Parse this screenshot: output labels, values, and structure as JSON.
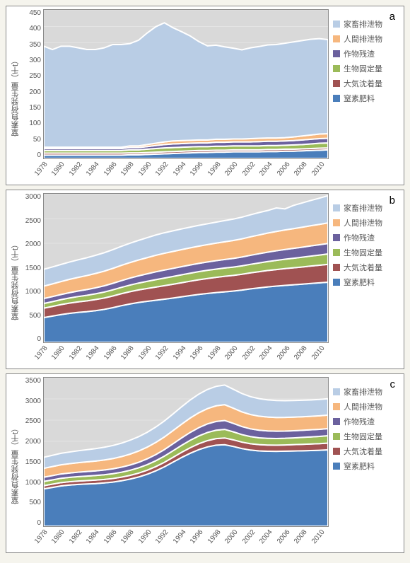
{
  "page": {
    "background_color": "#f5f4ed",
    "panel_border_color": "#888888"
  },
  "shared": {
    "yaxis_title": "窒素負荷発生量（千t）",
    "years": [
      1978,
      1979,
      1980,
      1981,
      1982,
      1983,
      1984,
      1985,
      1986,
      1987,
      1988,
      1989,
      1990,
      1991,
      1992,
      1993,
      1994,
      1995,
      1996,
      1997,
      1998,
      1999,
      2000,
      2001,
      2002,
      2003,
      2004,
      2005,
      2006,
      2007,
      2008,
      2009,
      2010,
      2011
    ],
    "x_tick_years": [
      1978,
      1980,
      1982,
      1984,
      1986,
      1988,
      1990,
      1992,
      1994,
      1996,
      1998,
      2000,
      2002,
      2004,
      2006,
      2008,
      2010
    ],
    "legend": [
      {
        "key": "livestock",
        "label": "家畜排泄物",
        "color": "#b9cde5"
      },
      {
        "key": "human",
        "label": "人間排泄物",
        "color": "#f6b77e"
      },
      {
        "key": "residue",
        "label": "作物残渣",
        "color": "#6b619e"
      },
      {
        "key": "fixation",
        "label": "生物固定量",
        "color": "#9bbb59"
      },
      {
        "key": "deposition",
        "label": "大気沈着量",
        "color": "#a05252"
      },
      {
        "key": "fertilizer",
        "label": "窒素肥料",
        "color": "#4a7ebb"
      }
    ],
    "plot_background": "#d9d9d9",
    "grid_color": "#ffffff",
    "axis_label_fontsize": 11,
    "tick_fontsize": 10
  },
  "panels": [
    {
      "id": "a",
      "type": "stacked-area",
      "ylim": [
        0,
        450
      ],
      "ytick_step": 50,
      "yticks": [
        0,
        50,
        100,
        150,
        200,
        250,
        300,
        350,
        400,
        450
      ],
      "series_order_bottom_to_top": [
        "fertilizer",
        "deposition",
        "fixation",
        "residue",
        "human",
        "livestock"
      ],
      "series": {
        "fertilizer": [
          10,
          10,
          10,
          10,
          10,
          10,
          10,
          10,
          10,
          10,
          11,
          11,
          12,
          13,
          14,
          15,
          16,
          17,
          18,
          18,
          19,
          19,
          20,
          20,
          20,
          20,
          21,
          21,
          22,
          22,
          23,
          24,
          25,
          26
        ],
        "deposition": [
          6,
          6,
          6,
          6,
          6,
          6,
          6,
          6,
          6,
          6,
          6,
          6,
          6,
          6,
          6,
          6,
          6,
          6,
          6,
          6,
          6,
          6,
          6,
          6,
          6,
          6,
          6,
          6,
          6,
          6,
          6,
          6,
          6,
          6
        ],
        "fixation": [
          8,
          8,
          8,
          8,
          8,
          8,
          8,
          8,
          8,
          8,
          9,
          9,
          10,
          11,
          12,
          12,
          12,
          12,
          12,
          12,
          12,
          12,
          12,
          12,
          12,
          12,
          12,
          12,
          12,
          13,
          13,
          14,
          15,
          15
        ],
        "residue": [
          6,
          6,
          6,
          6,
          6,
          6,
          6,
          6,
          6,
          6,
          7,
          7,
          8,
          9,
          10,
          11,
          11,
          11,
          11,
          11,
          12,
          12,
          12,
          12,
          12,
          13,
          13,
          13,
          13,
          13,
          14,
          14,
          14,
          14
        ],
        "human": [
          4,
          4,
          4,
          4,
          4,
          4,
          4,
          4,
          4,
          4,
          5,
          5,
          6,
          7,
          8,
          9,
          9,
          9,
          9,
          9,
          9,
          9,
          9,
          9,
          10,
          10,
          10,
          10,
          10,
          11,
          12,
          13,
          14,
          14
        ],
        "livestock": [
          306,
          296,
          306,
          306,
          301,
          296,
          296,
          301,
          311,
          311,
          310,
          320,
          338,
          353,
          361,
          343,
          330,
          316,
          298,
          285,
          285,
          280,
          275,
          270,
          275,
          278,
          282,
          283,
          286,
          288,
          289,
          290,
          289,
          285
        ]
      }
    },
    {
      "id": "b",
      "type": "stacked-area",
      "ylim": [
        0,
        3000
      ],
      "ytick_step": 500,
      "yticks": [
        0,
        500,
        1000,
        1500,
        2000,
        2500,
        3000
      ],
      "series_order_bottom_to_top": [
        "fertilizer",
        "deposition",
        "fixation",
        "residue",
        "human",
        "livestock"
      ],
      "series": {
        "fertilizer": [
          500,
          530,
          560,
          585,
          605,
          620,
          640,
          665,
          700,
          740,
          775,
          805,
          828,
          850,
          872,
          895,
          920,
          945,
          968,
          988,
          1005,
          1020,
          1035,
          1055,
          1080,
          1100,
          1120,
          1135,
          1150,
          1162,
          1175,
          1190,
          1202,
          1215
        ],
        "deposition": [
          190,
          195,
          202,
          208,
          213,
          218,
          224,
          230,
          236,
          242,
          248,
          254,
          260,
          266,
          272,
          278,
          284,
          290,
          296,
          302,
          308,
          314,
          317,
          320,
          323,
          327,
          331,
          335,
          339,
          343,
          347,
          351,
          355,
          360
        ],
        "fixation": [
          95,
          97,
          100,
          104,
          108,
          112,
          116,
          120,
          124,
          128,
          133,
          138,
          144,
          150,
          154,
          157,
          160,
          162,
          164,
          165,
          166,
          167,
          168,
          170,
          173,
          177,
          181,
          185,
          189,
          193,
          197,
          201,
          205,
          210
        ],
        "residue": [
          100,
          102,
          104,
          107,
          111,
          116,
          121,
          126,
          131,
          136,
          141,
          146,
          152,
          158,
          162,
          164,
          165,
          166,
          167,
          168,
          170,
          172,
          175,
          178,
          182,
          186,
          190,
          194,
          197,
          200,
          203,
          206,
          209,
          212
        ],
        "human": [
          250,
          256,
          262,
          269,
          276,
          283,
          290,
          296,
          302,
          308,
          314,
          320,
          327,
          334,
          339,
          342,
          344,
          346,
          348,
          351,
          354,
          358,
          362,
          367,
          373,
          379,
          385,
          390,
          395,
          399,
          403,
          407,
          411,
          415
        ],
        "livestock": [
          340,
          342,
          345,
          349,
          354,
          360,
          366,
          372,
          378,
          384,
          390,
          396,
          403,
          410,
          414,
          416,
          417,
          418,
          419,
          421,
          424,
          428,
          432,
          438,
          445,
          452,
          455,
          475,
          425,
          468,
          490,
          510,
          530,
          550
        ]
      }
    },
    {
      "id": "c",
      "type": "stacked-area",
      "ylim": [
        0,
        3500
      ],
      "ytick_step": 500,
      "yticks": [
        0,
        500,
        1000,
        1500,
        2000,
        2500,
        3000,
        3500
      ],
      "series_order_bottom_to_top": [
        "fertilizer",
        "deposition",
        "fixation",
        "residue",
        "human",
        "livestock"
      ],
      "series": {
        "fertilizer": [
          880,
          915,
          950,
          970,
          985,
          995,
          1005,
          1020,
          1040,
          1070,
          1110,
          1160,
          1225,
          1305,
          1400,
          1510,
          1620,
          1720,
          1805,
          1870,
          1910,
          1920,
          1880,
          1830,
          1795,
          1775,
          1767,
          1765,
          1768,
          1773,
          1778,
          1784,
          1790,
          1800
        ],
        "deposition": [
          75,
          76,
          78,
          79,
          80,
          81,
          82,
          83,
          84,
          86,
          88,
          91,
          95,
          100,
          106,
          113,
          121,
          130,
          139,
          147,
          154,
          160,
          156,
          152,
          149,
          147,
          146,
          146,
          147,
          149,
          151,
          153,
          155,
          158
        ],
        "fixation": [
          100,
          101,
          102,
          103,
          104,
          106,
          108,
          110,
          113,
          116,
          120,
          125,
          131,
          138,
          146,
          155,
          165,
          175,
          184,
          192,
          198,
          202,
          189,
          177,
          168,
          162,
          158,
          156,
          157,
          160,
          164,
          168,
          172,
          176
        ],
        "residue": [
          100,
          101,
          102,
          103,
          105,
          107,
          109,
          112,
          115,
          119,
          124,
          130,
          137,
          145,
          154,
          164,
          175,
          186,
          195,
          202,
          207,
          210,
          199,
          190,
          183,
          178,
          174,
          172,
          170,
          169,
          168,
          167,
          167,
          167
        ],
        "human": [
          210,
          213,
          216,
          219,
          223,
          227,
          231,
          236,
          241,
          248,
          256,
          265,
          275,
          286,
          298,
          311,
          325,
          339,
          351,
          361,
          368,
          372,
          358,
          346,
          337,
          331,
          327,
          324,
          322,
          320,
          319,
          318,
          318,
          318
        ],
        "livestock": [
          260,
          265,
          270,
          275,
          281,
          287,
          293,
          300,
          308,
          317,
          327,
          338,
          350,
          363,
          377,
          392,
          408,
          425,
          439,
          450,
          458,
          463,
          446,
          432,
          421,
          413,
          406,
          400,
          395,
          391,
          388,
          386,
          385,
          385
        ]
      }
    }
  ]
}
